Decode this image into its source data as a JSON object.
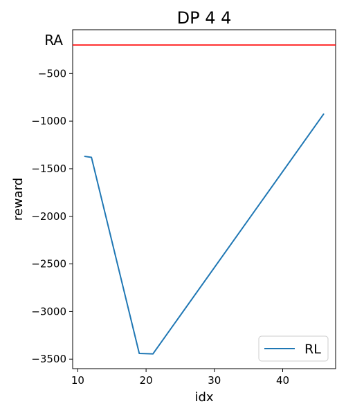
{
  "chart_data": {
    "type": "line",
    "title": "DP 4 4",
    "xlabel": "idx",
    "ylabel": "reward",
    "xlim": [
      9.25,
      47.75
    ],
    "ylim": [
      -3600,
      -40
    ],
    "xticks": [
      10,
      20,
      30,
      40
    ],
    "yticks": [
      -500,
      -1000,
      -1500,
      -2000,
      -2500,
      -3000,
      -3500
    ],
    "ytick_labels": [
      "−500",
      "−1000",
      "−1500",
      "−2000",
      "−2500",
      "−3000",
      "−3500"
    ],
    "reference_line": {
      "label": "RA",
      "y": -200,
      "color": "#ff0000"
    },
    "series": [
      {
        "name": "RL",
        "color": "#1f77b4",
        "x": [
          11,
          12,
          19,
          21,
          46
        ],
        "y": [
          -1370,
          -1380,
          -3440,
          -3445,
          -925
        ]
      }
    ],
    "legend": {
      "location": "lower-right",
      "entries": [
        "RL"
      ]
    },
    "grid": false
  }
}
